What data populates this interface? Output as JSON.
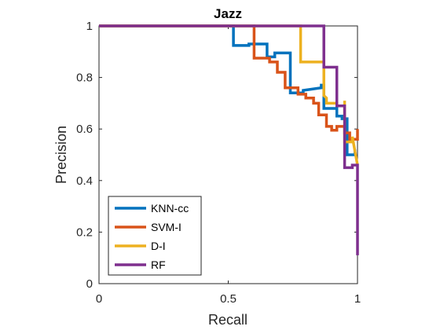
{
  "chart_data": {
    "type": "line",
    "title": "Jazz",
    "xlabel": "Recall",
    "ylabel": "Precision",
    "xlim": [
      0,
      1
    ],
    "ylim": [
      0,
      1
    ],
    "xticks": [
      0,
      0.5,
      1
    ],
    "xtick_labels": [
      "0",
      "0.5",
      "1"
    ],
    "yticks": [
      0,
      0.2,
      0.4,
      0.6,
      0.8,
      1
    ],
    "ytick_labels": [
      "0",
      "0.2",
      "0.4",
      "0.6",
      "0.8",
      "1"
    ],
    "grid": false,
    "legend_position": "bottom-left",
    "step": true,
    "series": [
      {
        "name": "KNN-cc",
        "color": "#0072BD",
        "x": [
          0,
          0.52,
          0.52,
          0.58,
          0.58,
          0.65,
          0.65,
          0.68,
          0.68,
          0.74,
          0.74,
          0.74,
          0.79,
          0.79,
          0.86,
          0.86,
          0.87,
          0.87,
          0.92,
          0.92,
          0.94,
          0.94,
          0.96,
          0.96,
          0.96,
          0.99,
          0.99,
          0.99
        ],
        "y": [
          1,
          1,
          0.924,
          0.924,
          0.93,
          0.93,
          0.88,
          0.88,
          0.895,
          0.895,
          0.75,
          0.74,
          0.74,
          0.75,
          0.76,
          0.77,
          0.77,
          0.68,
          0.68,
          0.65,
          0.65,
          0.64,
          0.64,
          0.57,
          0.5,
          0.5,
          0.51,
          0.52
        ]
      },
      {
        "name": "SVM-I",
        "color": "#D95319",
        "x": [
          0,
          0.6,
          0.6,
          0.66,
          0.66,
          0.69,
          0.69,
          0.72,
          0.72,
          0.77,
          0.77,
          0.8,
          0.8,
          0.83,
          0.83,
          0.85,
          0.85,
          0.88,
          0.88,
          0.9,
          0.9,
          0.92,
          0.92,
          0.95,
          0.95,
          0.97,
          0.97,
          1,
          1
        ],
        "y": [
          1,
          1,
          0.875,
          0.875,
          0.86,
          0.86,
          0.82,
          0.82,
          0.76,
          0.76,
          0.735,
          0.735,
          0.72,
          0.72,
          0.7,
          0.7,
          0.655,
          0.655,
          0.61,
          0.61,
          0.595,
          0.595,
          0.61,
          0.61,
          0.585,
          0.585,
          0.56,
          0.56,
          0.6
        ]
      },
      {
        "name": "D-I",
        "color": "#EDB120",
        "x": [
          0,
          0.78,
          0.78,
          0.87,
          0.87,
          0.88,
          0.88,
          0.92,
          0.92,
          0.95,
          0.95,
          0.95,
          0.95,
          0.98,
          0.98,
          0.98,
          1
        ],
        "y": [
          1,
          1,
          0.86,
          0.86,
          0.73,
          0.72,
          0.7,
          0.7,
          0.69,
          0.69,
          0.71,
          0.56,
          0.55,
          0.55,
          0.56,
          0.57,
          0.46
        ]
      },
      {
        "name": "RF",
        "color": "#7E2F8E",
        "x": [
          0,
          0.87,
          0.87,
          0.92,
          0.92,
          0.95,
          0.95,
          0.95,
          0.98,
          0.98,
          0.99,
          0.99,
          1,
          1
        ],
        "y": [
          1,
          1,
          0.84,
          0.84,
          0.69,
          0.69,
          0.45,
          0.45,
          0.45,
          0.46,
          0.46,
          0.46,
          0.46,
          0.11
        ]
      }
    ]
  }
}
